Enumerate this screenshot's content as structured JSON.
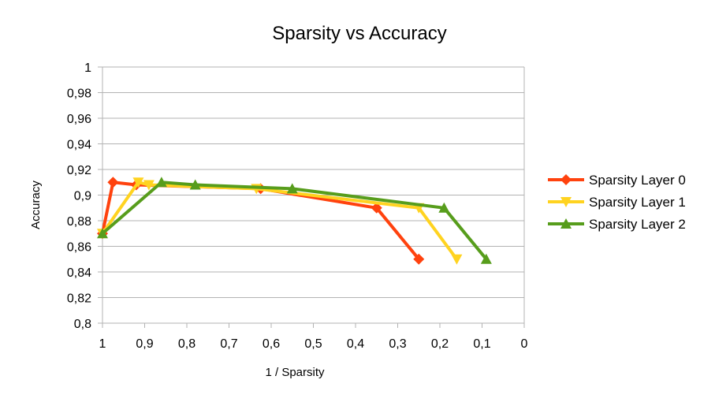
{
  "chart_data": {
    "type": "line",
    "title": "Sparsity vs Accuracy",
    "xlabel": "1 / Sparsity",
    "ylabel": "Accuracy",
    "xlim": [
      1,
      0
    ],
    "ylim": [
      0.8,
      1
    ],
    "x_ticks": [
      "1",
      "0,9",
      "0,8",
      "0,7",
      "0,6",
      "0,5",
      "0,4",
      "0,3",
      "0,2",
      "0,1",
      "0"
    ],
    "y_ticks": [
      "0,8",
      "0,82",
      "0,84",
      "0,86",
      "0,88",
      "0,9",
      "0,92",
      "0,94",
      "0,96",
      "0,98",
      "1"
    ],
    "grid": "horizontal",
    "legend_position": "right",
    "series": [
      {
        "name": "Sparsity Layer 0",
        "color": "#ff420e",
        "marker": "diamond",
        "points": [
          [
            1.0,
            0.87
          ],
          [
            0.975,
            0.91
          ],
          [
            0.92,
            0.908
          ],
          [
            0.625,
            0.905
          ],
          [
            0.35,
            0.89
          ],
          [
            0.25,
            0.85
          ]
        ]
      },
      {
        "name": "Sparsity Layer 1",
        "color": "#ffd320",
        "marker": "triangle-down",
        "points": [
          [
            1.0,
            0.87
          ],
          [
            0.915,
            0.91
          ],
          [
            0.89,
            0.908
          ],
          [
            0.635,
            0.905
          ],
          [
            0.25,
            0.89
          ],
          [
            0.16,
            0.85
          ]
        ]
      },
      {
        "name": "Sparsity Layer 2",
        "color": "#579d1c",
        "marker": "triangle-up",
        "points": [
          [
            1.0,
            0.87
          ],
          [
            0.86,
            0.91
          ],
          [
            0.78,
            0.908
          ],
          [
            0.55,
            0.905
          ],
          [
            0.19,
            0.89
          ],
          [
            0.09,
            0.85
          ]
        ]
      }
    ]
  }
}
